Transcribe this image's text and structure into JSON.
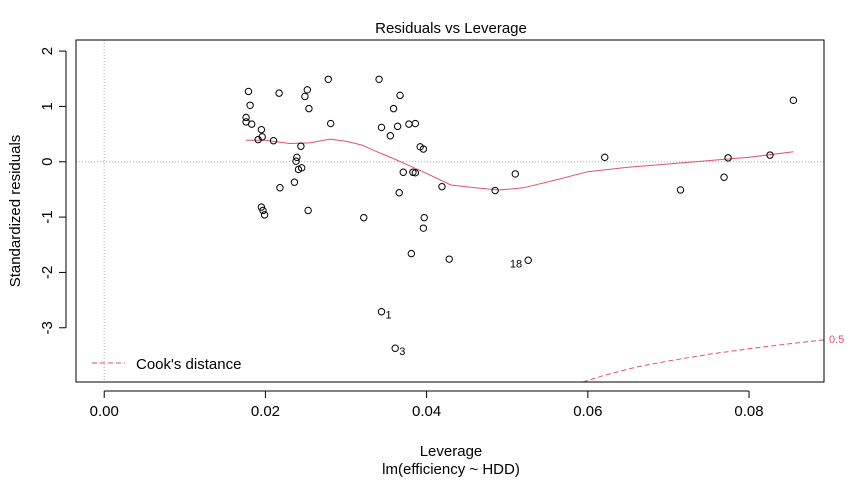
{
  "chart_data": {
    "type": "scatter",
    "title": "Residuals vs Leverage",
    "xlabel": "Leverage",
    "xlabel_sub": "lm(efficiency ~ HDD)",
    "ylabel": "Standardized residuals",
    "xlim": [
      -0.0035,
      0.0893
    ],
    "ylim": [
      -3.98,
      2.2
    ],
    "xticks": [
      0.0,
      0.02,
      0.04,
      0.06,
      0.08
    ],
    "xtick_labels": [
      "0.00",
      "0.02",
      "0.04",
      "0.06",
      "0.08"
    ],
    "yticks": [
      -3,
      -2,
      -1,
      0,
      1,
      2
    ],
    "ytick_labels": [
      "-3",
      "-2",
      "-1",
      "0",
      "1",
      "2"
    ],
    "reference_lines": {
      "x": 0,
      "y": 0
    },
    "legend": {
      "position": "bottom-left",
      "label": "Cook's distance"
    },
    "point_color": "#000000",
    "smooth_color": "#DF536B",
    "cooks_color": "#DF536B",
    "points": [
      {
        "x": 0.0176,
        "y": 0.8
      },
      {
        "x": 0.0176,
        "y": 0.72
      },
      {
        "x": 0.0179,
        "y": 1.27
      },
      {
        "x": 0.0181,
        "y": 1.02
      },
      {
        "x": 0.0183,
        "y": 0.68
      },
      {
        "x": 0.0191,
        "y": 0.4
      },
      {
        "x": 0.0195,
        "y": 0.58
      },
      {
        "x": 0.0196,
        "y": 0.45
      },
      {
        "x": 0.0195,
        "y": -0.82
      },
      {
        "x": 0.0197,
        "y": -0.88
      },
      {
        "x": 0.0199,
        "y": -0.96
      },
      {
        "x": 0.021,
        "y": 0.38
      },
      {
        "x": 0.0217,
        "y": 1.24
      },
      {
        "x": 0.0218,
        "y": -0.47
      },
      {
        "x": 0.0236,
        "y": -0.37
      },
      {
        "x": 0.0238,
        "y": 0.01
      },
      {
        "x": 0.0239,
        "y": 0.08
      },
      {
        "x": 0.0241,
        "y": -0.14
      },
      {
        "x": 0.0244,
        "y": 0.28
      },
      {
        "x": 0.0245,
        "y": -0.11
      },
      {
        "x": 0.0249,
        "y": 1.18
      },
      {
        "x": 0.0252,
        "y": 1.3
      },
      {
        "x": 0.0254,
        "y": 0.96
      },
      {
        "x": 0.0253,
        "y": -0.88
      },
      {
        "x": 0.0278,
        "y": 1.49
      },
      {
        "x": 0.0281,
        "y": 0.69
      },
      {
        "x": 0.0322,
        "y": -1.01
      },
      {
        "x": 0.0341,
        "y": 1.49
      },
      {
        "x": 0.0344,
        "y": 0.62
      },
      {
        "x": 0.0344,
        "y": -2.71
      },
      {
        "x": 0.0355,
        "y": 0.47
      },
      {
        "x": 0.0359,
        "y": 0.96
      },
      {
        "x": 0.0361,
        "y": -3.37
      },
      {
        "x": 0.0364,
        "y": 0.64
      },
      {
        "x": 0.0367,
        "y": 1.2
      },
      {
        "x": 0.0366,
        "y": -0.56
      },
      {
        "x": 0.0371,
        "y": -0.19
      },
      {
        "x": 0.0378,
        "y": 0.68
      },
      {
        "x": 0.0381,
        "y": -1.66
      },
      {
        "x": 0.0383,
        "y": -0.19
      },
      {
        "x": 0.0386,
        "y": -0.2
      },
      {
        "x": 0.0386,
        "y": 0.69
      },
      {
        "x": 0.0392,
        "y": 0.27
      },
      {
        "x": 0.0396,
        "y": 0.23
      },
      {
        "x": 0.0397,
        "y": -1.01
      },
      {
        "x": 0.0396,
        "y": -1.2
      },
      {
        "x": 0.0419,
        "y": -0.45
      },
      {
        "x": 0.0428,
        "y": -1.76
      },
      {
        "x": 0.0485,
        "y": -0.52
      },
      {
        "x": 0.051,
        "y": -0.22
      },
      {
        "x": 0.0526,
        "y": -1.78
      },
      {
        "x": 0.0621,
        "y": 0.08
      },
      {
        "x": 0.0715,
        "y": -0.51
      },
      {
        "x": 0.0769,
        "y": -0.28
      },
      {
        "x": 0.0774,
        "y": 0.07
      },
      {
        "x": 0.0826,
        "y": 0.12
      },
      {
        "x": 0.0855,
        "y": 1.11
      }
    ],
    "point_labels": [
      {
        "label": "1",
        "x": 0.0344,
        "y": -2.71
      },
      {
        "label": "3",
        "x": 0.0361,
        "y": -3.37
      },
      {
        "label": "18",
        "x": 0.0526,
        "y": -1.78
      }
    ],
    "smooth_line": [
      {
        "x": 0.0176,
        "y": 0.39
      },
      {
        "x": 0.02,
        "y": 0.39
      },
      {
        "x": 0.023,
        "y": 0.33
      },
      {
        "x": 0.0255,
        "y": 0.34
      },
      {
        "x": 0.028,
        "y": 0.41
      },
      {
        "x": 0.03,
        "y": 0.37
      },
      {
        "x": 0.032,
        "y": 0.3
      },
      {
        "x": 0.034,
        "y": 0.17
      },
      {
        "x": 0.036,
        "y": 0.05
      },
      {
        "x": 0.038,
        "y": -0.08
      },
      {
        "x": 0.04,
        "y": -0.21
      },
      {
        "x": 0.043,
        "y": -0.42
      },
      {
        "x": 0.046,
        "y": -0.47
      },
      {
        "x": 0.049,
        "y": -0.51
      },
      {
        "x": 0.052,
        "y": -0.47
      },
      {
        "x": 0.056,
        "y": -0.33
      },
      {
        "x": 0.06,
        "y": -0.18
      },
      {
        "x": 0.065,
        "y": -0.1
      },
      {
        "x": 0.07,
        "y": -0.04
      },
      {
        "x": 0.075,
        "y": 0.02
      },
      {
        "x": 0.08,
        "y": 0.08
      },
      {
        "x": 0.0855,
        "y": 0.18
      }
    ],
    "cooks_distance_contour": {
      "label": "0.5",
      "points": [
        {
          "x": 0.0594,
          "y": -3.98
        },
        {
          "x": 0.062,
          "y": -3.86
        },
        {
          "x": 0.066,
          "y": -3.71
        },
        {
          "x": 0.07,
          "y": -3.6
        },
        {
          "x": 0.075,
          "y": -3.48
        },
        {
          "x": 0.08,
          "y": -3.38
        },
        {
          "x": 0.085,
          "y": -3.29
        },
        {
          "x": 0.0893,
          "y": -3.22
        }
      ]
    }
  }
}
